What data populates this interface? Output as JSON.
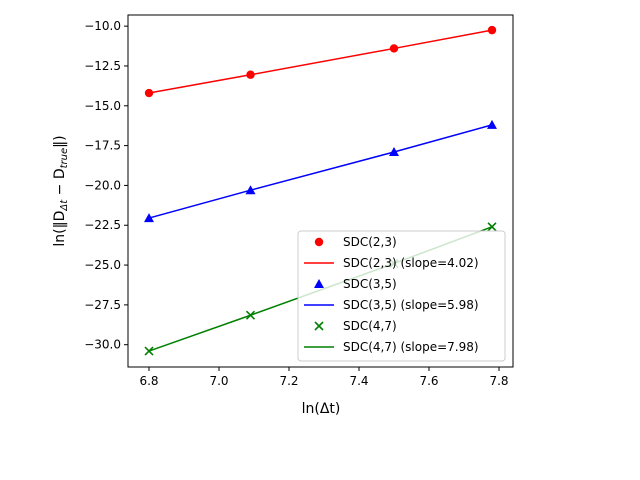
{
  "chart_data": {
    "type": "line",
    "title": "",
    "xlabel": "ln(Δt)",
    "ylabel_prefix": "ln(‖D",
    "ylabel_sub1": "Δt",
    "ylabel_mid": " − D",
    "ylabel_sub2": "true",
    "ylabel_suffix": "‖)",
    "xlim": [
      6.74,
      7.84
    ],
    "ylim": [
      -31.4,
      -9.3
    ],
    "xticks": [
      6.8,
      7.0,
      7.2,
      7.4,
      7.6,
      7.8
    ],
    "xtick_labels": [
      "6.8",
      "7.0",
      "7.2",
      "7.4",
      "7.6",
      "7.8"
    ],
    "yticks": [
      -10.0,
      -12.5,
      -15.0,
      -17.5,
      -20.0,
      -22.5,
      -25.0,
      -27.5,
      -30.0
    ],
    "ytick_labels": [
      "−10.0",
      "−12.5",
      "−15.0",
      "−17.5",
      "−20.0",
      "−22.5",
      "−25.0",
      "−27.5",
      "−30.0"
    ],
    "x": [
      6.8,
      7.09,
      7.5,
      7.78
    ],
    "series": [
      {
        "name": "SDC(2,3)",
        "fit_name": "SDC(2,3) (slope=4.02)",
        "marker": "circle",
        "color": "#ff0000",
        "values": [
          -14.2,
          -13.05,
          -11.4,
          -10.25
        ]
      },
      {
        "name": "SDC(3,5)",
        "fit_name": "SDC(3,5) (slope=5.98)",
        "marker": "triangle",
        "color": "#0000ff",
        "values": [
          -22.05,
          -20.3,
          -17.9,
          -16.2
        ]
      },
      {
        "name": "SDC(4,7)",
        "fit_name": "SDC(4,7) (slope=7.98)",
        "marker": "x",
        "color": "#008000",
        "values": [
          -30.4,
          -28.15,
          -24.9,
          -22.6
        ]
      }
    ],
    "grid": false,
    "legend_position": "lower-right"
  }
}
